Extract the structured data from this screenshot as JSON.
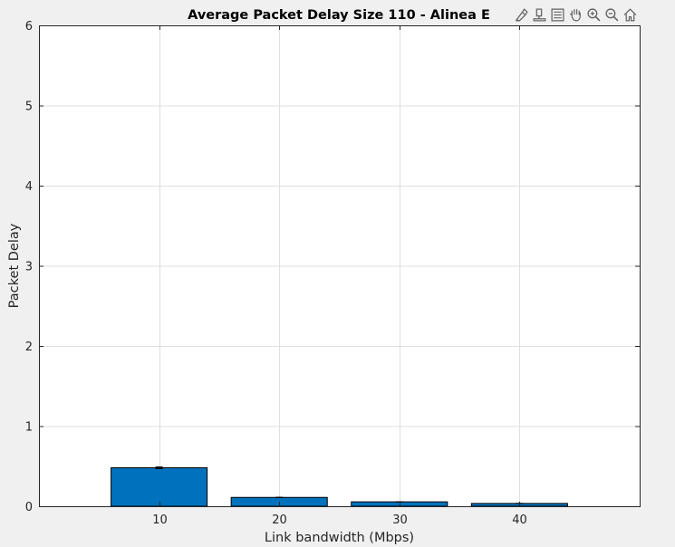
{
  "toolbar": {
    "icons": [
      "brush-icon",
      "data-tips-icon",
      "legend-icon",
      "pan-hand-icon",
      "zoom-in-icon",
      "zoom-out-icon",
      "home-icon"
    ]
  },
  "colors": {
    "bar": "#0072bd",
    "axis": "#262626",
    "grid": "#dfdfdf",
    "background": "#f0f0f0",
    "plot": "#ffffff"
  },
  "chart_data": {
    "type": "bar",
    "title": "Average Packet Delay Size 110 - Alinea E",
    "xlabel": "Link bandwidth (Mbps)",
    "ylabel": "Packet Delay",
    "categories": [
      "10",
      "20",
      "30",
      "40"
    ],
    "x": [
      10,
      20,
      30,
      40
    ],
    "values": [
      0.48,
      0.11,
      0.055,
      0.035
    ],
    "errors": [
      0.01,
      0.002,
      0.001,
      0.001
    ],
    "xlim": [
      0,
      50
    ],
    "ylim": [
      0,
      6
    ],
    "yticks": [
      0,
      1,
      2,
      3,
      4,
      5,
      6
    ],
    "grid": true,
    "legend": "none"
  }
}
